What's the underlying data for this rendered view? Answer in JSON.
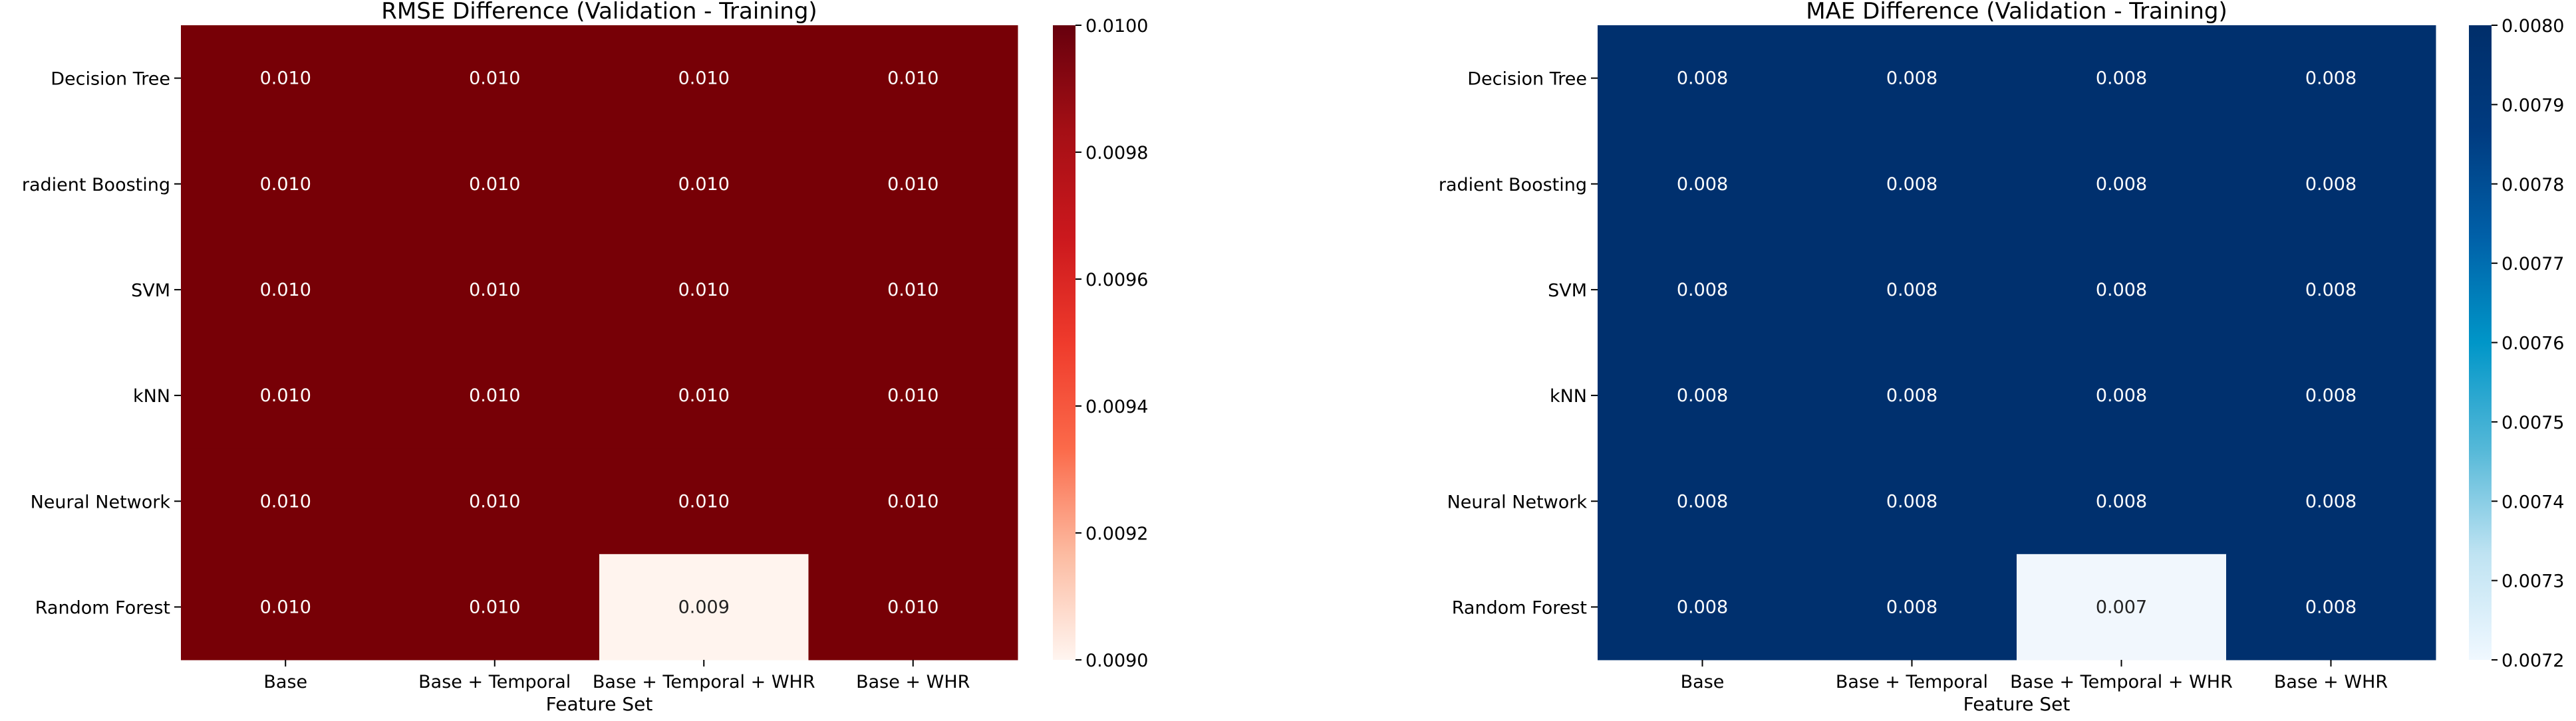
{
  "chart_data": [
    {
      "type": "heatmap",
      "title": "RMSE Difference (Validation - Training)",
      "xlabel": "Feature Set",
      "ylabel": "",
      "x_categories": [
        "Base",
        "Base + Temporal",
        "Base + Temporal + WHR",
        "Base + WHR"
      ],
      "y_categories": [
        "Decision Tree",
        "radient Boosting",
        "SVM",
        "kNN",
        "Neural Network",
        "Random Forest"
      ],
      "values": [
        [
          0.01,
          0.01,
          0.01,
          0.01
        ],
        [
          0.01,
          0.01,
          0.01,
          0.01
        ],
        [
          0.01,
          0.01,
          0.01,
          0.01
        ],
        [
          0.01,
          0.01,
          0.01,
          0.01
        ],
        [
          0.01,
          0.01,
          0.01,
          0.01
        ],
        [
          0.01,
          0.01,
          0.009,
          0.01
        ]
      ],
      "cell_labels": [
        [
          "0.010",
          "0.010",
          "0.010",
          "0.010"
        ],
        [
          "0.010",
          "0.010",
          "0.010",
          "0.010"
        ],
        [
          "0.010",
          "0.010",
          "0.010",
          "0.010"
        ],
        [
          "0.010",
          "0.010",
          "0.010",
          "0.010"
        ],
        [
          "0.010",
          "0.010",
          "0.010",
          "0.010"
        ],
        [
          "0.010",
          "0.010",
          "0.009",
          "0.010"
        ]
      ],
      "colormap": [
        "#fff5f0",
        "#fcbba1",
        "#fb6a4a",
        "#ef3b2c",
        "#cb181d",
        "#a50f15",
        "#67000d"
      ],
      "high_color": "#770006",
      "low_color": "#fff4ee",
      "colorbar_range": [
        0.009,
        0.01
      ],
      "colorbar_ticks": [
        "0.0090",
        "0.0092",
        "0.0094",
        "0.0096",
        "0.0098",
        "0.0100"
      ]
    },
    {
      "type": "heatmap",
      "title": "MAE Difference (Validation - Training)",
      "xlabel": "Feature Set",
      "ylabel": "",
      "x_categories": [
        "Base",
        "Base + Temporal",
        "Base + Temporal + WHR",
        "Base + WHR"
      ],
      "y_categories": [
        "Decision Tree",
        "radient Boosting",
        "SVM",
        "kNN",
        "Neural Network",
        "Random Forest"
      ],
      "values": [
        [
          0.008,
          0.008,
          0.008,
          0.008
        ],
        [
          0.008,
          0.008,
          0.008,
          0.008
        ],
        [
          0.008,
          0.008,
          0.008,
          0.008
        ],
        [
          0.008,
          0.008,
          0.008,
          0.008
        ],
        [
          0.008,
          0.008,
          0.008,
          0.008
        ],
        [
          0.008,
          0.008,
          0.0072,
          0.008
        ]
      ],
      "cell_labels": [
        [
          "0.008",
          "0.008",
          "0.008",
          "0.008"
        ],
        [
          "0.008",
          "0.008",
          "0.008",
          "0.008"
        ],
        [
          "0.008",
          "0.008",
          "0.008",
          "0.008"
        ],
        [
          "0.008",
          "0.008",
          "0.008",
          "0.008"
        ],
        [
          "0.008",
          "0.008",
          "0.008",
          "0.008"
        ],
        [
          "0.008",
          "0.008",
          "0.007",
          "0.008"
        ]
      ],
      "colormap": [
        "#f0f8ff",
        "#bfe3f2",
        "#54b8d8",
        "#0096c8",
        "#0060a8",
        "#003b80",
        "#002e6a"
      ],
      "high_color": "#00306e",
      "low_color": "#f1f7fd",
      "colorbar_range": [
        0.0072,
        0.008
      ],
      "colorbar_ticks": [
        "0.0072",
        "0.0073",
        "0.0074",
        "0.0075",
        "0.0076",
        "0.0077",
        "0.0078",
        "0.0079",
        "0.0080"
      ]
    }
  ]
}
